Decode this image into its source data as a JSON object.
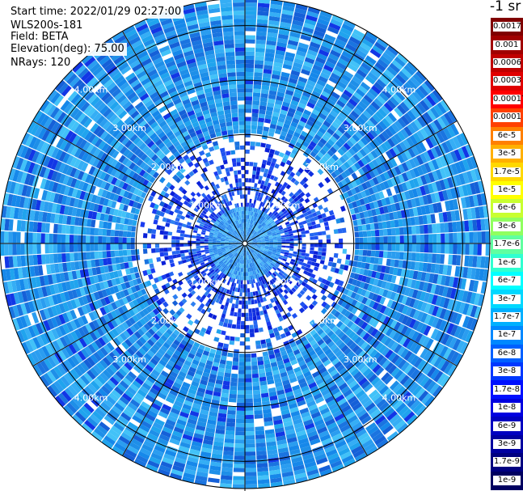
{
  "header": {
    "start_time": "Start time: 2022/01/29 02:27:00",
    "instrument": "WLS200s-181",
    "field": "Field: BETA",
    "elevation": "Elevation(deg): 75.00",
    "nrays": "NRays: 120"
  },
  "colorbar": {
    "unit": "-1 sr",
    "labels": [
      "0.0017",
      "0.001",
      "0.0006",
      "0.0003",
      "0.00017",
      "0.0001",
      "6e-5",
      "3e-5",
      "1.7e-5",
      "1e-5",
      "6e-6",
      "3e-6",
      "1.7e-6",
      "1e-6",
      "6e-7",
      "3e-7",
      "1.7e-7",
      "1e-7",
      "6e-8",
      "3e-8",
      "1.7e-8",
      "1e-8",
      "6e-9",
      "3e-9",
      "1.7e-9",
      "1e-9"
    ],
    "colors": [
      "#800000",
      "#a00000",
      "#c00000",
      "#e00000",
      "#ff0000",
      "#ff4000",
      "#ff8000",
      "#ffb000",
      "#ffd800",
      "#ffff00",
      "#c8ff30",
      "#90ff60",
      "#60ffa0",
      "#30ffd0",
      "#00ffff",
      "#00d8ff",
      "#00b0ff",
      "#0088ff",
      "#0060ff",
      "#0038ff",
      "#0010ff",
      "#0000e0",
      "#0000c0",
      "#0000a0",
      "#000080",
      "#000060"
    ]
  },
  "chart_data": {
    "type": "heatmap",
    "projection": "polar (PPI)",
    "field": "BETA",
    "nrays": 120,
    "range_rings_km": [
      1.0,
      2.0,
      3.0,
      4.0
    ],
    "range_labels": [
      "1.00km",
      "2.00km",
      "3.00km",
      "4.00km"
    ],
    "max_range_km": 4.5,
    "grid": true,
    "dominant_value_by_range": [
      {
        "range_km": [
          0.0,
          0.7
        ],
        "value": "3e-8"
      },
      {
        "range_km": [
          0.7,
          2.0
        ],
        "value": "1e-8"
      },
      {
        "range_km": [
          2.0,
          4.5
        ],
        "value": "3e-8"
      }
    ]
  }
}
